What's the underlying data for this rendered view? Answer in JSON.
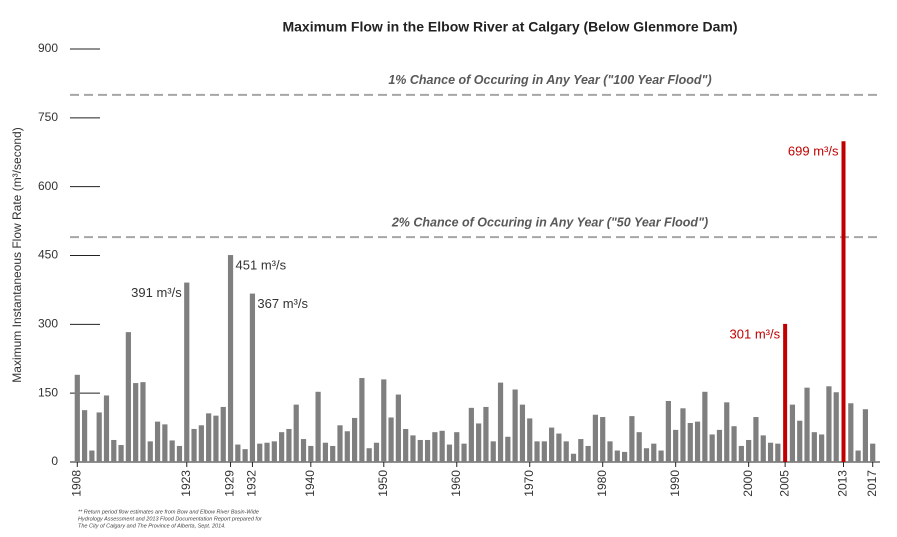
{
  "chart_data": {
    "type": "bar",
    "title": "Maximum Flow in the Elbow River at Calgary (Below Glenmore Dam)",
    "y_label": "Maximum Instantaneous Flow Rate (m³/second)",
    "x": [
      1908,
      1909,
      1910,
      1911,
      1912,
      1913,
      1914,
      1915,
      1916,
      1917,
      1918,
      1919,
      1920,
      1921,
      1922,
      1923,
      1924,
      1925,
      1926,
      1927,
      1928,
      1929,
      1930,
      1931,
      1932,
      1933,
      1934,
      1935,
      1936,
      1937,
      1938,
      1939,
      1940,
      1941,
      1942,
      1943,
      1944,
      1945,
      1946,
      1947,
      1948,
      1949,
      1950,
      1951,
      1952,
      1953,
      1954,
      1955,
      1956,
      1957,
      1958,
      1959,
      1960,
      1961,
      1962,
      1963,
      1964,
      1965,
      1966,
      1967,
      1968,
      1969,
      1970,
      1971,
      1972,
      1973,
      1974,
      1975,
      1976,
      1977,
      1978,
      1979,
      1980,
      1981,
      1982,
      1983,
      1984,
      1985,
      1986,
      1987,
      1988,
      1989,
      1990,
      1991,
      1992,
      1993,
      1994,
      1995,
      1996,
      1997,
      1998,
      1999,
      2000,
      2001,
      2002,
      2003,
      2004,
      2005,
      2006,
      2007,
      2008,
      2009,
      2010,
      2011,
      2012,
      2013,
      2014,
      2015,
      2016,
      2017
    ],
    "values": [
      190,
      113,
      25,
      108,
      145,
      48,
      37,
      283,
      172,
      174,
      45,
      88,
      82,
      47,
      35,
      391,
      72,
      80,
      106,
      101,
      120,
      451,
      38,
      28,
      367,
      40,
      42,
      45,
      65,
      72,
      125,
      50,
      35,
      153,
      42,
      35,
      80,
      67,
      96,
      183,
      30,
      42,
      180,
      97,
      147,
      72,
      58,
      48,
      48,
      65,
      68,
      38,
      65,
      40,
      118,
      84,
      120,
      45,
      173,
      55,
      158,
      125,
      95,
      45,
      45,
      75,
      62,
      45,
      18,
      50,
      35,
      103,
      98,
      45,
      25,
      22,
      100,
      65,
      30,
      40,
      25,
      133,
      70,
      117,
      85,
      88,
      153,
      60,
      70,
      130,
      78,
      35,
      48,
      98,
      58,
      42,
      40,
      301,
      125,
      90,
      162,
      65,
      60,
      165,
      152,
      699,
      128,
      25,
      115,
      40
    ],
    "value_labels": [
      null,
      null,
      null,
      null,
      null,
      null,
      null,
      null,
      null,
      null,
      null,
      null,
      null,
      null,
      null,
      "391 m³/s",
      null,
      null,
      null,
      null,
      null,
      "451 m³/s",
      null,
      null,
      "367 m³/s",
      null,
      null,
      null,
      null,
      null,
      null,
      null,
      null,
      null,
      null,
      null,
      null,
      null,
      null,
      null,
      null,
      null,
      null,
      null,
      null,
      null,
      null,
      null,
      null,
      null,
      null,
      null,
      null,
      null,
      null,
      null,
      null,
      null,
      null,
      null,
      null,
      null,
      null,
      null,
      null,
      null,
      null,
      null,
      null,
      null,
      null,
      null,
      null,
      null,
      null,
      null,
      null,
      null,
      null,
      null,
      null,
      null,
      null,
      null,
      null,
      null,
      null,
      null,
      null,
      null,
      null,
      null,
      null,
      null,
      null,
      null,
      null,
      "301 m³/s",
      null,
      null,
      null,
      null,
      null,
      null,
      null,
      "699 m³/s",
      null,
      null,
      null,
      null
    ],
    "color": "#7f7f7f",
    "highlight": {
      "color": "#c00000",
      "x": [
        2005,
        2013
      ]
    },
    "xlim": [
      1907,
      2018
    ],
    "xticks": [
      1908,
      1923,
      1929,
      1932,
      1940,
      1950,
      1960,
      1970,
      1980,
      1990,
      2000,
      2005,
      2013,
      2017
    ],
    "ylim": [
      0,
      900
    ],
    "yticks": [
      0,
      150,
      300,
      450,
      600,
      750,
      900
    ],
    "reference_lines": [
      {
        "value": 800,
        "label": "1% Chance of Occuring in Any Year (\"100 Year Flood\")"
      },
      {
        "value": 490,
        "label": "2% Chance of Occuring in Any Year (\"50 Year Flood\")"
      }
    ],
    "footnote": [
      "** Return period flow estimates are from Bow and Elbow River Basin-Wide",
      "Hydrology Assessment and 2013 Flood Documentation Report prepared for",
      "The City of Calgary and The Province of Alberta, Sept. 2014."
    ]
  }
}
